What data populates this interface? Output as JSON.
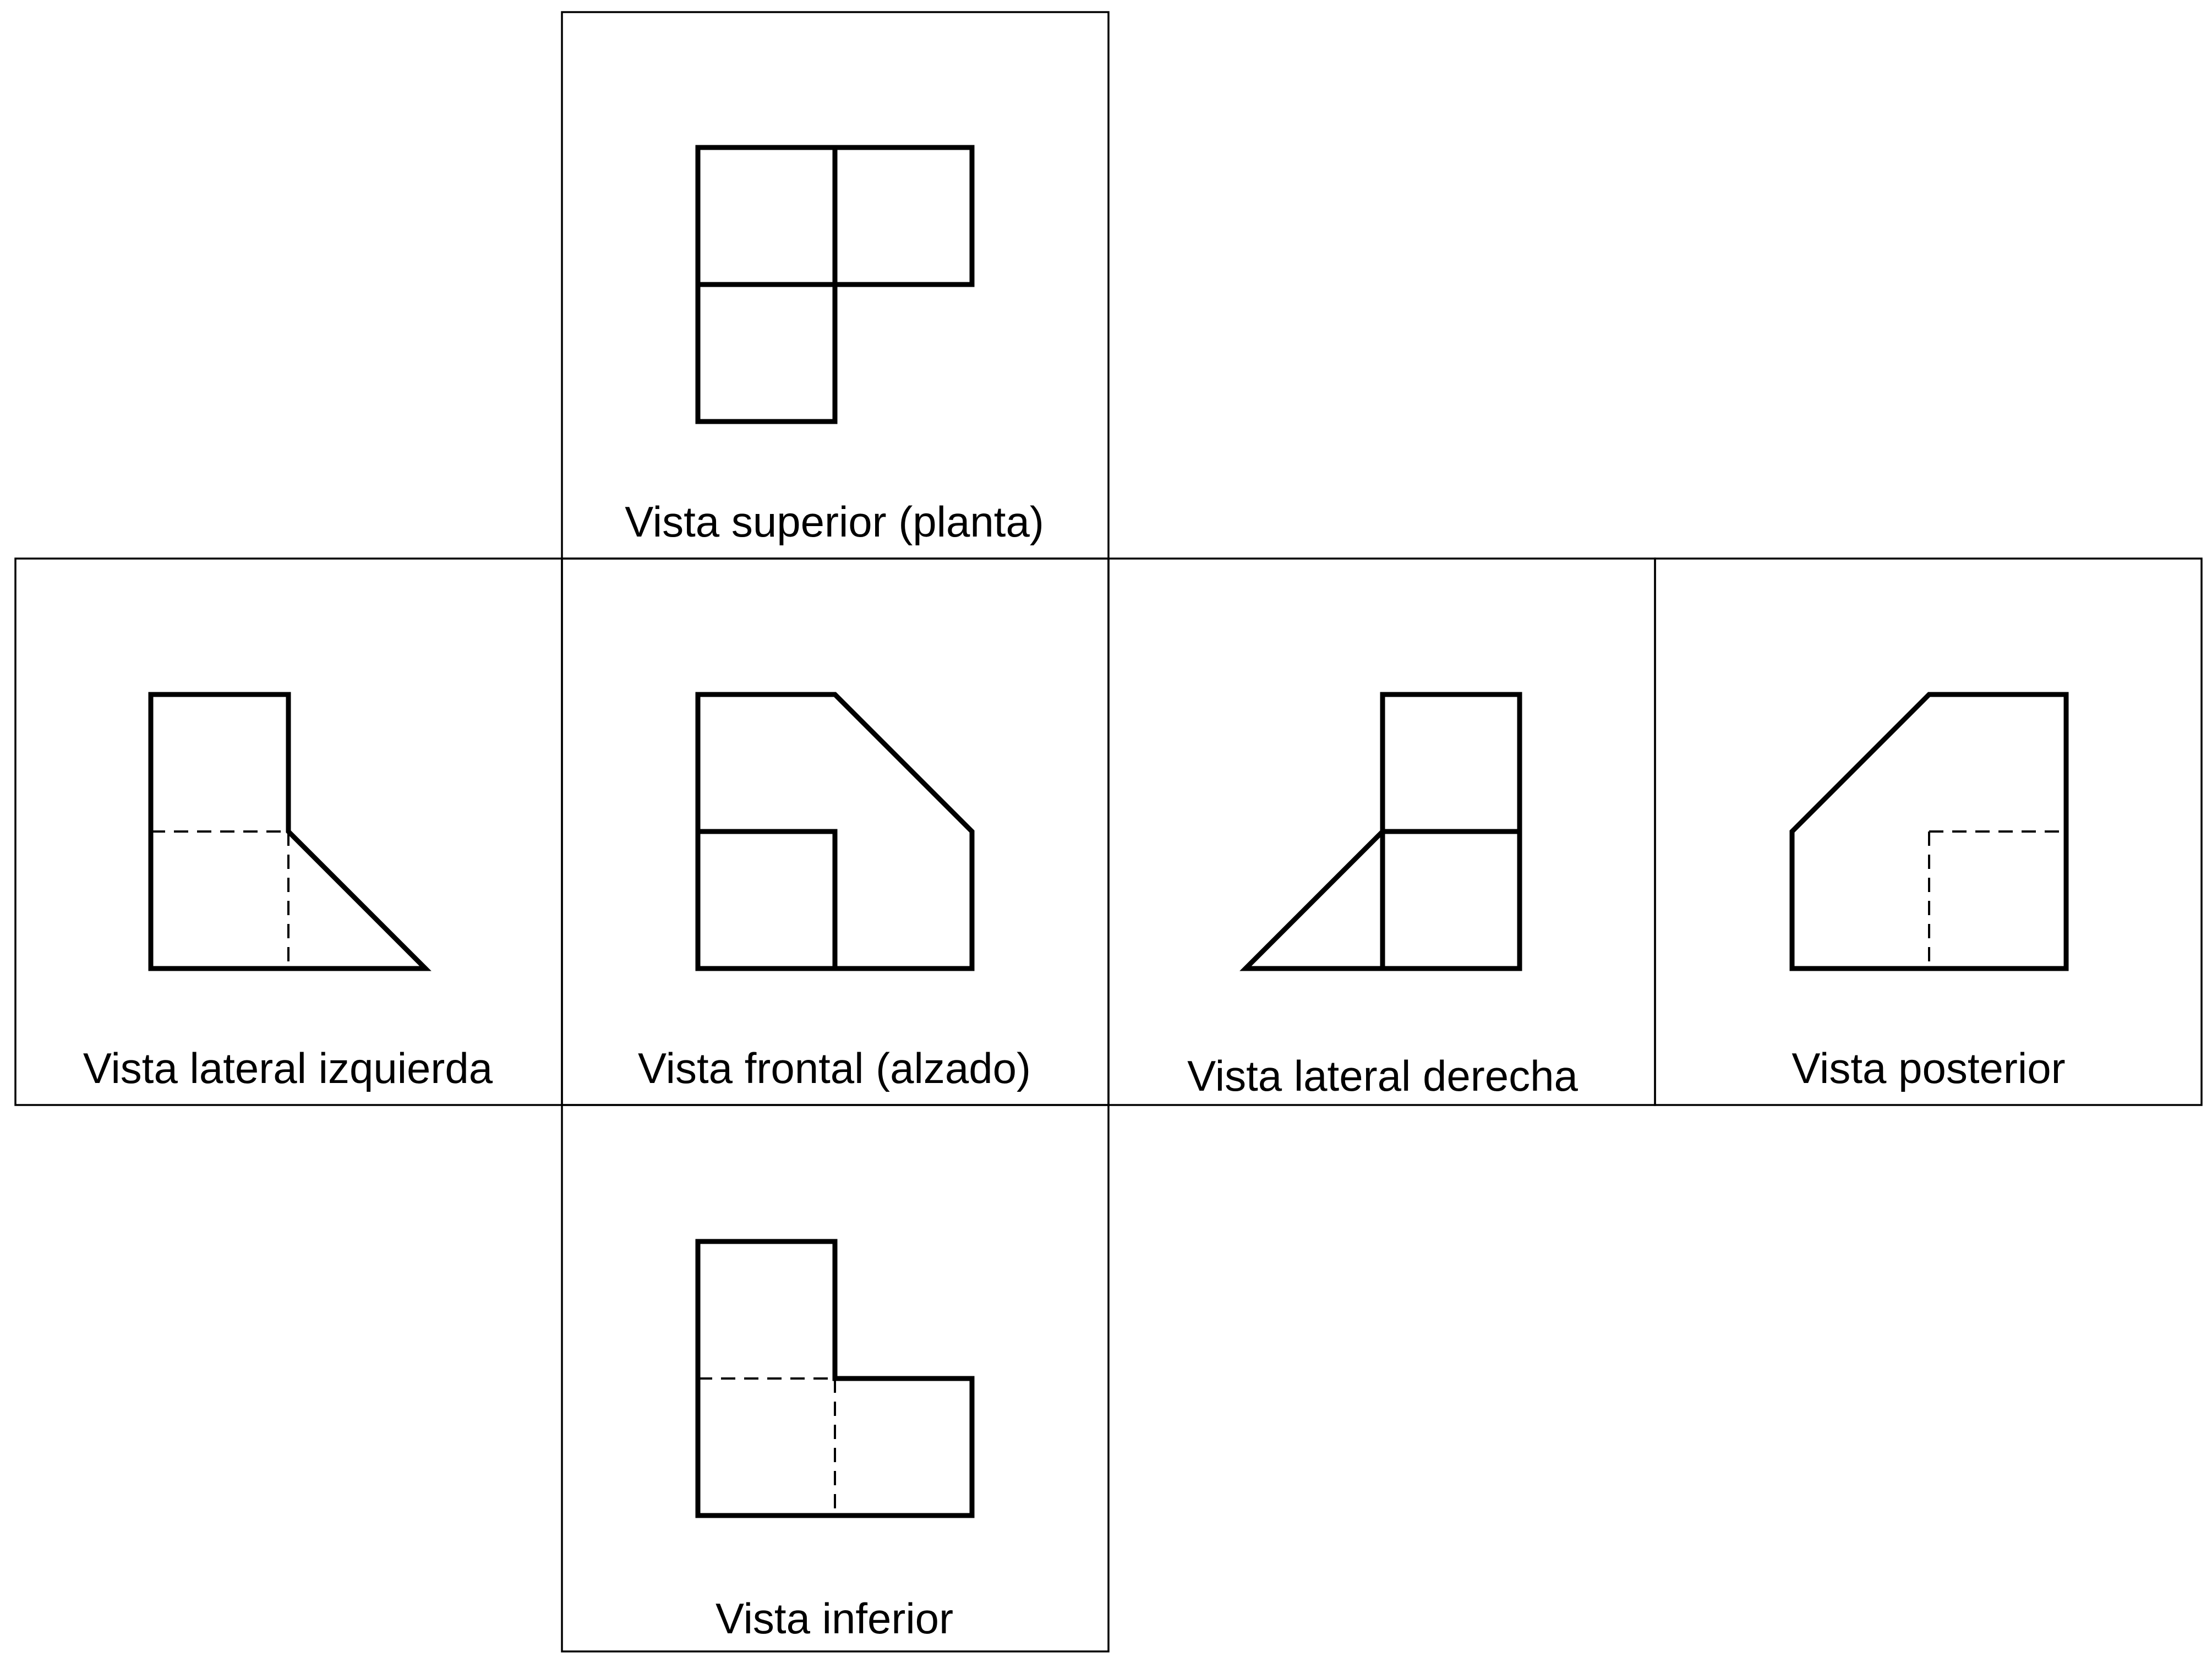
{
  "views": {
    "top": {
      "label": "Vista superior (planta)"
    },
    "left": {
      "label": "Vista lateral izquierda"
    },
    "front": {
      "label": "Vista frontal (alzado)"
    },
    "right": {
      "label": "Vista lateral derecha"
    },
    "back": {
      "label": "Vista posterior"
    },
    "bottom": {
      "label": "Vista inferior"
    }
  },
  "colors": {
    "line": "#000000",
    "background": "#ffffff"
  }
}
